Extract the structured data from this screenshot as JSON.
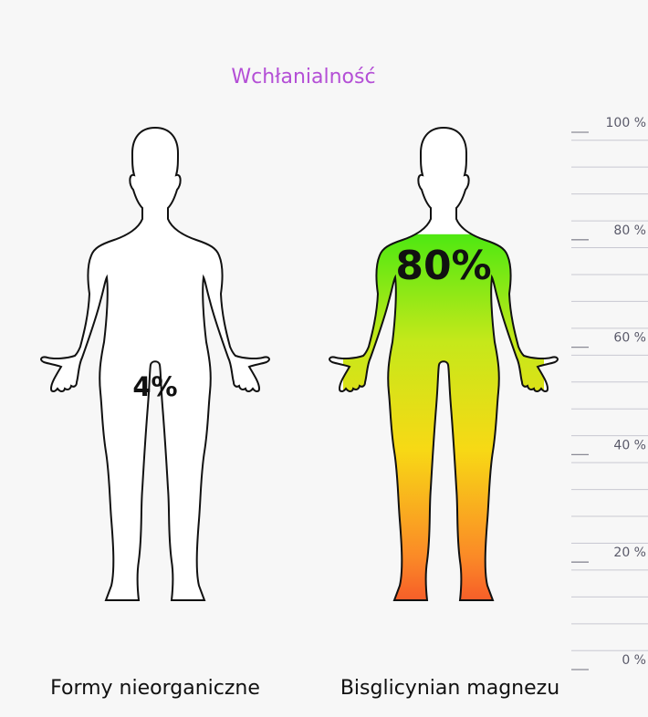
{
  "title": "Wchłanialność",
  "colors": {
    "title": "#b44fd6",
    "low_fill": "#ee1d2c",
    "gradient": [
      "#ee1d2c",
      "#fb8a27",
      "#f7d915",
      "#c5e81a",
      "#4ee811"
    ],
    "outline": "#111111",
    "scale_line": "#c8c8d2",
    "scale_text": "#5a5a6a"
  },
  "chart_data": {
    "type": "bar",
    "categories": [
      "Formy nieorganiczne",
      "Bisglicynian magnezu"
    ],
    "values": [
      4,
      80
    ],
    "data_labels": [
      "4%",
      "80%"
    ],
    "ylim": [
      0,
      100
    ],
    "ticks": [
      {
        "value": 100,
        "label": "100 %"
      },
      {
        "value": 80,
        "label": "80 %"
      },
      {
        "value": 60,
        "label": "60 %"
      },
      {
        "value": 40,
        "label": "40 %"
      },
      {
        "value": 20,
        "label": "20 %"
      },
      {
        "value": 0,
        "label": "0 %"
      }
    ],
    "minor_gridlines": true
  }
}
